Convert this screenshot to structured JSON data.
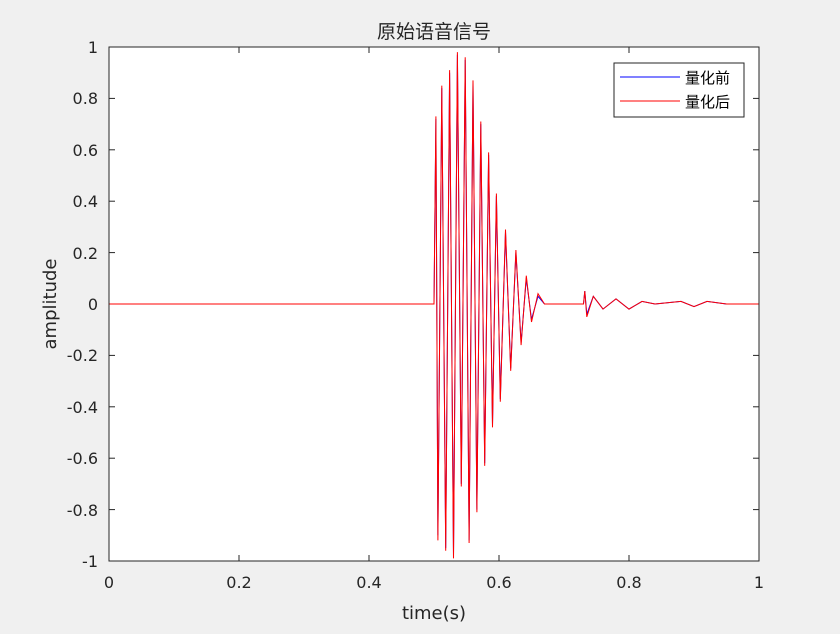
{
  "chart_data": {
    "type": "line",
    "title": "原始语音信号",
    "xlabel": "time(s)",
    "ylabel": "amplitude",
    "xlim": [
      0,
      1
    ],
    "ylim": [
      -1,
      1
    ],
    "x_ticks": [
      "0",
      "0.2",
      "0.4",
      "0.6",
      "0.8",
      "1"
    ],
    "y_ticks": [
      "1",
      "0.8",
      "0.6",
      "0.4",
      "0.2",
      "0",
      "-0.2",
      "-0.4",
      "-0.6",
      "-0.8",
      "-1"
    ],
    "grid": false,
    "legend_position": "top-right",
    "series": [
      {
        "name": "量化前",
        "color": "#0000ff",
        "points": [
          [
            0.0,
            0.0
          ],
          [
            0.1,
            0.0
          ],
          [
            0.2,
            0.0
          ],
          [
            0.3,
            0.0
          ],
          [
            0.4,
            0.0
          ],
          [
            0.5,
            0.0
          ],
          [
            0.503,
            0.72
          ],
          [
            0.506,
            -0.9
          ],
          [
            0.512,
            0.84
          ],
          [
            0.518,
            -0.95
          ],
          [
            0.524,
            0.9
          ],
          [
            0.53,
            -0.98
          ],
          [
            0.536,
            0.97
          ],
          [
            0.542,
            -0.7
          ],
          [
            0.548,
            0.95
          ],
          [
            0.554,
            -0.92
          ],
          [
            0.56,
            0.86
          ],
          [
            0.566,
            -0.8
          ],
          [
            0.572,
            0.7
          ],
          [
            0.578,
            -0.62
          ],
          [
            0.584,
            0.58
          ],
          [
            0.59,
            -0.47
          ],
          [
            0.596,
            0.42
          ],
          [
            0.602,
            -0.37
          ],
          [
            0.61,
            0.28
          ],
          [
            0.618,
            -0.25
          ],
          [
            0.626,
            0.2
          ],
          [
            0.634,
            -0.15
          ],
          [
            0.642,
            0.1
          ],
          [
            0.65,
            -0.06
          ],
          [
            0.66,
            0.03
          ],
          [
            0.67,
            0.0
          ],
          [
            0.73,
            0.0
          ],
          [
            0.732,
            0.05
          ],
          [
            0.735,
            -0.04
          ],
          [
            0.745,
            0.03
          ],
          [
            0.76,
            -0.02
          ],
          [
            0.78,
            0.02
          ],
          [
            0.8,
            -0.02
          ],
          [
            0.82,
            0.01
          ],
          [
            0.84,
            0.0
          ],
          [
            0.88,
            0.01
          ],
          [
            0.9,
            -0.01
          ],
          [
            0.92,
            0.01
          ],
          [
            0.95,
            0.0
          ],
          [
            1.0,
            0.0
          ]
        ]
      },
      {
        "name": "量化后",
        "color": "#ff0000",
        "points": [
          [
            0.0,
            0.0
          ],
          [
            0.1,
            0.0
          ],
          [
            0.2,
            0.0
          ],
          [
            0.3,
            0.0
          ],
          [
            0.4,
            0.0
          ],
          [
            0.5,
            0.0
          ],
          [
            0.503,
            0.73
          ],
          [
            0.506,
            -0.92
          ],
          [
            0.512,
            0.85
          ],
          [
            0.518,
            -0.96
          ],
          [
            0.524,
            0.91
          ],
          [
            0.53,
            -0.99
          ],
          [
            0.536,
            0.98
          ],
          [
            0.542,
            -0.71
          ],
          [
            0.548,
            0.96
          ],
          [
            0.554,
            -0.93
          ],
          [
            0.56,
            0.87
          ],
          [
            0.566,
            -0.81
          ],
          [
            0.572,
            0.71
          ],
          [
            0.578,
            -0.63
          ],
          [
            0.584,
            0.59
          ],
          [
            0.59,
            -0.48
          ],
          [
            0.596,
            0.43
          ],
          [
            0.602,
            -0.38
          ],
          [
            0.61,
            0.29
          ],
          [
            0.618,
            -0.26
          ],
          [
            0.626,
            0.21
          ],
          [
            0.634,
            -0.16
          ],
          [
            0.642,
            0.11
          ],
          [
            0.65,
            -0.07
          ],
          [
            0.66,
            0.04
          ],
          [
            0.67,
            0.0
          ],
          [
            0.73,
            0.0
          ],
          [
            0.732,
            0.05
          ],
          [
            0.735,
            -0.05
          ],
          [
            0.745,
            0.03
          ],
          [
            0.76,
            -0.02
          ],
          [
            0.78,
            0.02
          ],
          [
            0.8,
            -0.02
          ],
          [
            0.82,
            0.01
          ],
          [
            0.84,
            0.0
          ],
          [
            0.88,
            0.01
          ],
          [
            0.9,
            -0.01
          ],
          [
            0.92,
            0.01
          ],
          [
            0.95,
            0.0
          ],
          [
            1.0,
            0.0
          ]
        ]
      }
    ]
  }
}
